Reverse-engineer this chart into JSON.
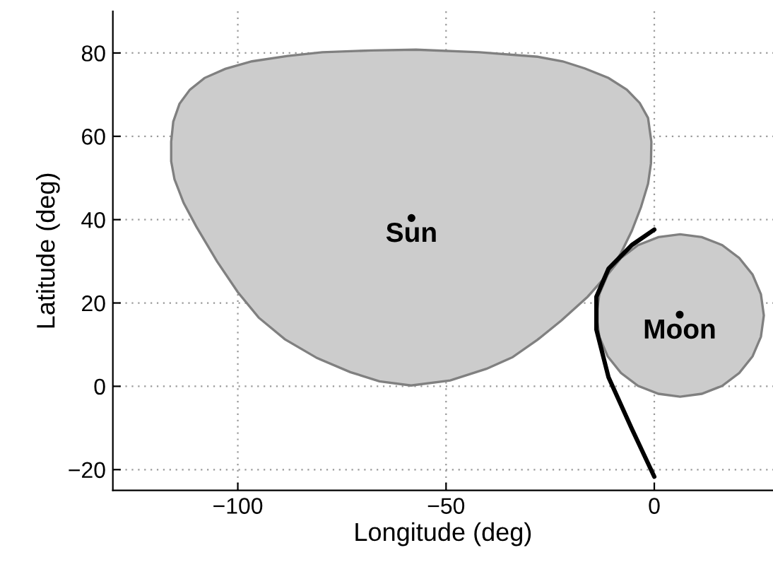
{
  "chart_data": {
    "type": "area",
    "xlabel": "Longitude (deg)",
    "ylabel": "Latitude (deg)",
    "xlim": [
      -130,
      28.5
    ],
    "ylim": [
      -25,
      90
    ],
    "xticks": [
      -100,
      -50,
      0
    ],
    "yticks": [
      -20,
      0,
      20,
      40,
      60,
      80
    ],
    "grid": true,
    "series": [
      {
        "color": "#cccccc",
        "x": [
          -58.4,
          -66,
          -73,
          -81,
          -88.7,
          -95,
          -100,
          -105,
          -110,
          -113,
          -115.2,
          -116,
          -116,
          -115.5,
          -114,
          -111.5,
          -108,
          -103,
          -96.6,
          -88,
          -79.7,
          -68,
          -57.2,
          -42,
          -28,
          -22,
          -16.7,
          -11,
          -6.6,
          -3.5,
          -1.5,
          -0.7,
          -0.8,
          -1.5,
          -3.2,
          -5.4,
          -8,
          -11,
          -16,
          -22.3,
          -28,
          -34,
          -40.3,
          -49
        ],
        "values": [
          0.2,
          1.2,
          3.4,
          6.8,
          11.3,
          16.5,
          22.6,
          30,
          38.4,
          44,
          49.7,
          54,
          58.7,
          63.5,
          67.8,
          71.2,
          74,
          76.2,
          78,
          79.3,
          80.2,
          80.6,
          80.8,
          80.2,
          79.1,
          78,
          76.3,
          74,
          71.2,
          68,
          64.4,
          58.7,
          53.5,
          48.6,
          43,
          37.3,
          32,
          27.1,
          21.5,
          15.8,
          11.2,
          7,
          4.2,
          1.4
        ]
      },
      {
        "color": "#cccccc",
        "x": [
          26.3,
          25.6,
          23.6,
          20.4,
          16.3,
          11.4,
          6.2,
          1.0,
          -3.9,
          -8.0,
          -11.2,
          -13.2,
          -13.9,
          -13.2,
          -11.2,
          -8.0,
          -3.9,
          1.0,
          6.2,
          11.4,
          16.3,
          20.4,
          23.6,
          25.6
        ],
        "values": [
          17,
          22.1,
          26.8,
          30.8,
          33.9,
          35.8,
          36.5,
          35.8,
          33.9,
          30.8,
          26.8,
          22.1,
          17,
          11.9,
          7.2,
          3.2,
          0.1,
          -1.8,
          -2.5,
          -1.8,
          0.1,
          3.2,
          7.2,
          11.9
        ]
      },
      {
        "type": "line",
        "color": "#000000",
        "x": [
          0,
          -5.4,
          -11,
          -13.9,
          -13.9,
          -11,
          -5.4,
          0
        ],
        "values": [
          37.6,
          33.9,
          28.2,
          21.5,
          13.6,
          2.2,
          -10.2,
          -21.7
        ]
      },
      {
        "type": "scatter",
        "color": "#000000",
        "marker": "circle",
        "x": [
          -58.3,
          6.1
        ],
        "values": [
          40.4,
          17.2
        ]
      }
    ],
    "annotations": [
      {
        "text": "Sun",
        "x": -58.3,
        "y": 40.4
      },
      {
        "text": "Moon",
        "x": 6.1,
        "y": 17.2
      }
    ]
  }
}
